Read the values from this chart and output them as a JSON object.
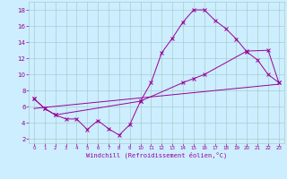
{
  "xlabel": "Windchill (Refroidissement éolien,°C)",
  "bg_color": "#cceeff",
  "grid_color": "#aacccc",
  "line_color": "#990099",
  "xlim": [
    -0.5,
    23.5
  ],
  "ylim": [
    1.5,
    19.0
  ],
  "xticks": [
    0,
    1,
    2,
    3,
    4,
    5,
    6,
    7,
    8,
    9,
    10,
    11,
    12,
    13,
    14,
    15,
    16,
    17,
    18,
    19,
    20,
    21,
    22,
    23
  ],
  "yticks": [
    2,
    4,
    6,
    8,
    10,
    12,
    14,
    16,
    18
  ],
  "line1_x": [
    0,
    1,
    2,
    3,
    4,
    5,
    6,
    7,
    8,
    9,
    10,
    11,
    12,
    13,
    14,
    15,
    16,
    17,
    18,
    19,
    20,
    21,
    22,
    23
  ],
  "line1_y": [
    7.0,
    5.8,
    5.0,
    4.5,
    4.5,
    3.2,
    4.3,
    3.3,
    2.5,
    3.8,
    6.7,
    9.0,
    12.7,
    14.5,
    16.5,
    18.0,
    18.0,
    16.7,
    15.7,
    14.4,
    12.8,
    11.8,
    10.0,
    9.0
  ],
  "line2_x": [
    0,
    1,
    2,
    10,
    14,
    15,
    16,
    20,
    22,
    23
  ],
  "line2_y": [
    7.0,
    5.8,
    5.0,
    6.7,
    9.0,
    9.5,
    10.0,
    12.9,
    13.0,
    9.0
  ],
  "line3_x": [
    0,
    23
  ],
  "line3_y": [
    5.8,
    8.8
  ]
}
